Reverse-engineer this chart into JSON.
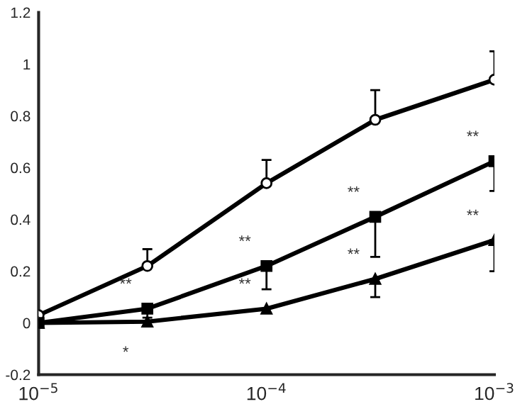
{
  "chart_data": {
    "type": "line",
    "log": "x",
    "grid": false,
    "legend": false,
    "line_style": "solid",
    "xlim": [
      1e-05,
      0.001
    ],
    "ylim": [
      -0.2,
      1.2
    ],
    "xticks": [
      {
        "value": 1e-05,
        "label": "10$^{−5}$"
      },
      {
        "value": 0.0001,
        "label": "10$^{−4}$"
      },
      {
        "value": 0.001,
        "label": "10$^{−3}$"
      }
    ],
    "yticks": [
      {
        "value": -0.2,
        "label": "-0.2"
      },
      0,
      0.2,
      0.4,
      0.6,
      0.8,
      1,
      1.2
    ],
    "x": [
      1e-05,
      3e-05,
      0.0001,
      0.0003,
      0.001
    ],
    "series": [
      {
        "color": "#000000",
        "marker": "circle",
        "values": [
          0.03,
          0.22,
          0.54,
          0.785,
          0.94
        ],
        "errors": [
          null,
          [
            0.22,
            0.285
          ],
          [
            0.54,
            0.63
          ],
          [
            0.785,
            0.9
          ],
          [
            0.94,
            1.05
          ]
        ]
      },
      {
        "color": "#000000",
        "marker": "square",
        "values": [
          0.0,
          0.055,
          0.22,
          0.41,
          0.625
        ],
        "errors": [
          null,
          [
            0.02,
            0.055
          ],
          [
            0.13,
            0.22
          ],
          [
            0.255,
            0.41
          ],
          [
            0.51,
            0.625
          ]
        ]
      },
      {
        "color": "#000000",
        "marker": "triangle",
        "values": [
          0.0,
          0.005,
          0.055,
          0.17,
          0.32
        ],
        "errors": [
          null,
          null,
          null,
          [
            0.1,
            0.17
          ],
          [
            0.2,
            0.32
          ]
        ]
      }
    ],
    "annotations": [
      {
        "text": "**",
        "x": 3e-05,
        "y": 0.055
      },
      {
        "text": "*",
        "x": 3e-05,
        "y": 0.005
      },
      {
        "text": "**",
        "x": 0.0001,
        "y": 0.22
      },
      {
        "text": "**",
        "x": 0.0001,
        "y": 0.055
      },
      {
        "text": "**",
        "x": 0.0003,
        "y": 0.41
      },
      {
        "text": "**",
        "x": 0.0003,
        "y": 0.17
      },
      {
        "text": "**",
        "x": 0.001,
        "y": 0.625
      },
      {
        "text": "**",
        "x": 0.001,
        "y": 0.32
      }
    ]
  }
}
